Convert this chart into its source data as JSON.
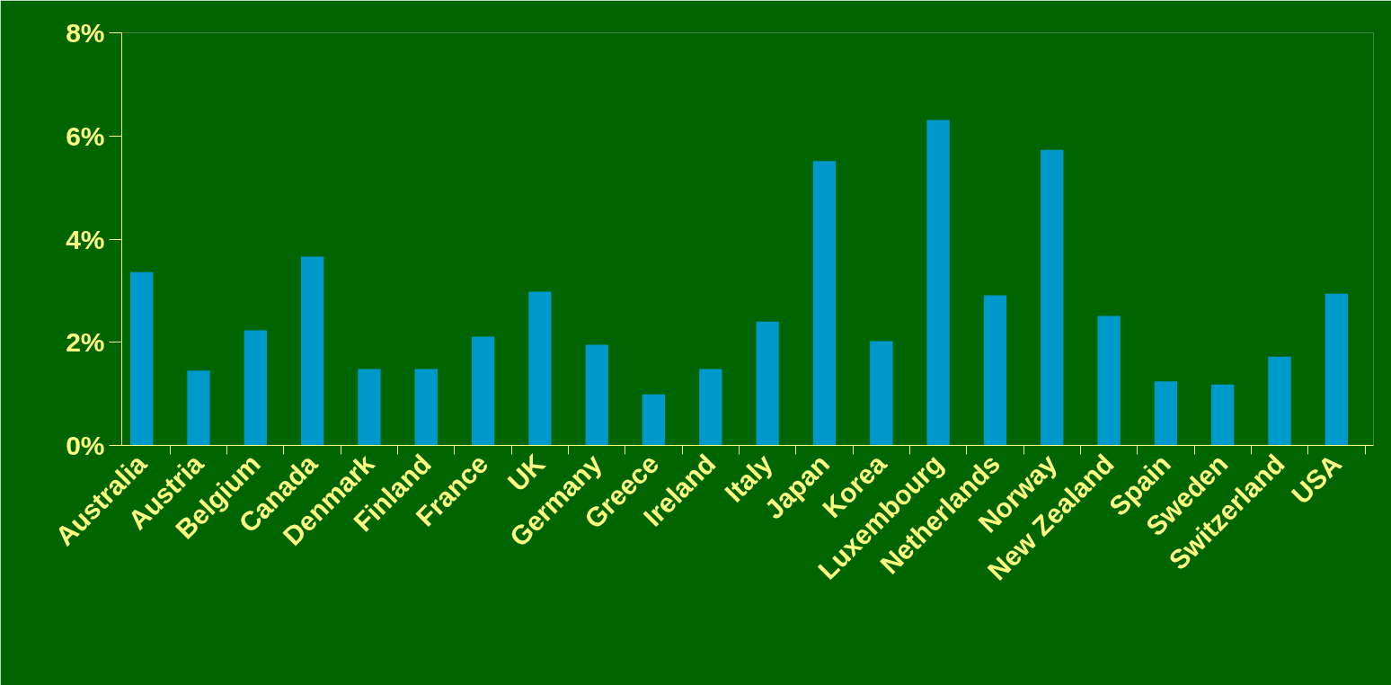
{
  "chart_data": {
    "type": "bar",
    "categories": [
      "Australia",
      "Austria",
      "Belgium",
      "Canada",
      "Denmark",
      "Finland",
      "France",
      "UK",
      "Germany",
      "Greece",
      "Ireland",
      "Italy",
      "Japan",
      "Korea",
      "Luxembourg",
      "Netherlands",
      "Norway",
      "New Zealand",
      "Spain",
      "Sweden",
      "Switzerland",
      "USA"
    ],
    "values": [
      3.36,
      1.45,
      2.23,
      3.66,
      1.48,
      1.48,
      2.11,
      2.98,
      1.95,
      0.99,
      1.48,
      2.4,
      5.51,
      2.02,
      6.31,
      2.91,
      5.73,
      2.51,
      1.24,
      1.18,
      1.72,
      2.94
    ],
    "color": "#0099cc",
    "ylim": [
      0,
      8
    ],
    "yticks": [
      {
        "value": 0,
        "label": "0%"
      },
      {
        "value": 2,
        "label": "2%"
      },
      {
        "value": 4,
        "label": "4%"
      },
      {
        "value": 6,
        "label": "6%"
      },
      {
        "value": 8,
        "label": "8%"
      }
    ]
  }
}
